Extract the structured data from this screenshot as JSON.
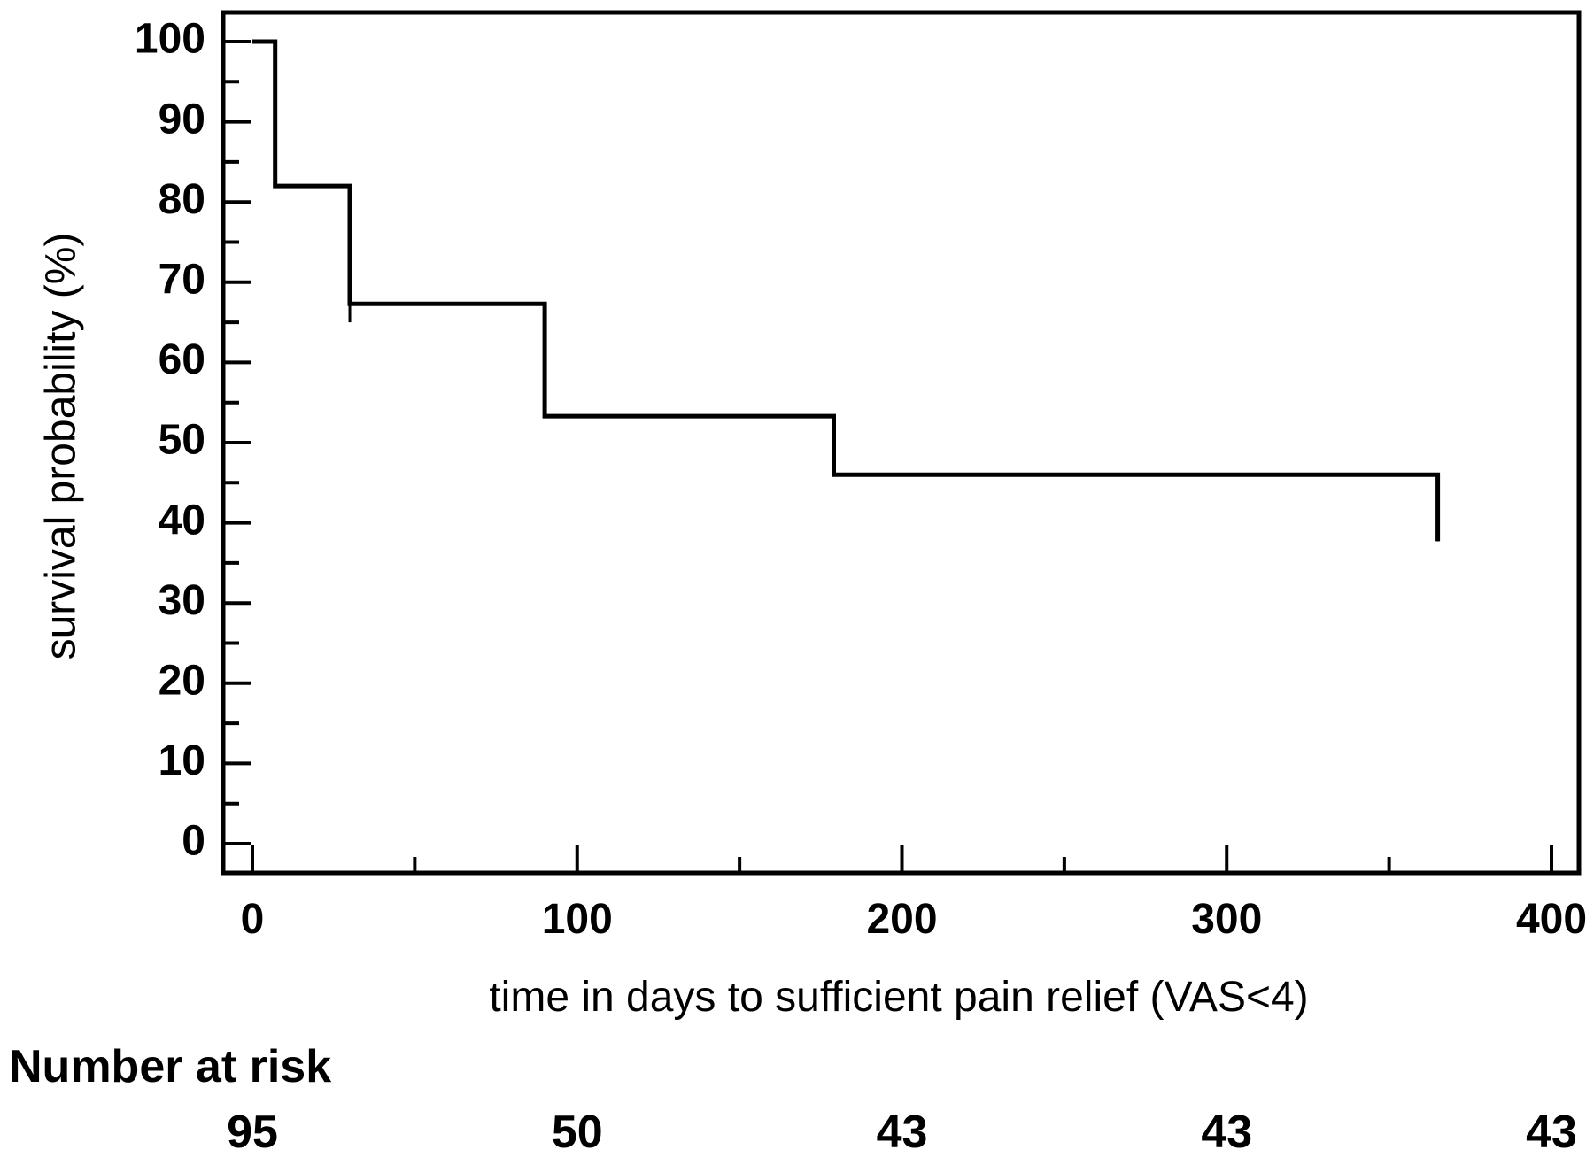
{
  "chart_data": {
    "type": "line",
    "subtype": "kaplan-meier step curve",
    "xlabel": "time in days to sufficient pain relief (VAS<4)",
    "ylabel": "survival probability (%)",
    "xlim": [
      0,
      400
    ],
    "ylim": [
      0,
      100
    ],
    "x_ticks": [
      0,
      100,
      200,
      300,
      400
    ],
    "y_ticks": [
      0,
      10,
      20,
      30,
      40,
      50,
      60,
      70,
      80,
      90,
      100
    ],
    "x_minor_step": 50,
    "y_minor_step": 5,
    "grid": false,
    "series": [
      {
        "color": "#000000",
        "x": [
          0,
          7,
          7,
          30,
          30,
          90,
          90,
          179,
          179,
          365,
          365
        ],
        "y": [
          100,
          100,
          82,
          82,
          67.3,
          67.3,
          53.3,
          53.3,
          46,
          46,
          37.7
        ],
        "censor_marks": [
          {
            "x": 30,
            "y": 67.3,
            "y_end": 65
          },
          {
            "x": 365,
            "y": 46,
            "y_end": 37.7
          }
        ]
      }
    ],
    "risk_table": {
      "title": "Number at risk",
      "x": [
        0,
        100,
        200,
        300,
        400
      ],
      "values": [
        "95",
        "50",
        "43",
        "43",
        "43"
      ]
    }
  }
}
